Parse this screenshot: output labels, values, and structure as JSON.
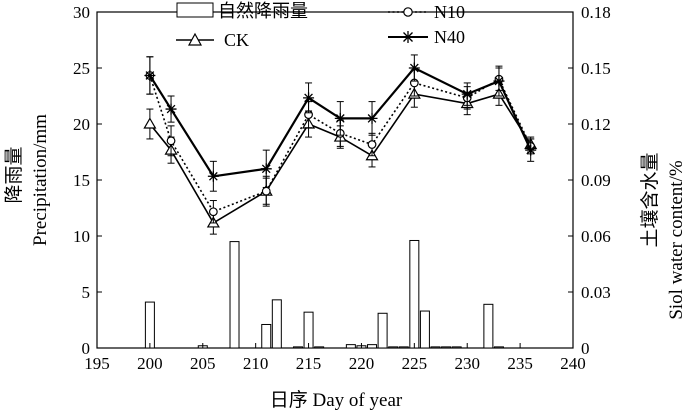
{
  "chart_data": {
    "type": "bar+line",
    "xlabel": "日序 Day of year",
    "ylabel_left_cn": "降雨量",
    "ylabel_left_en": "Precipitation/mm",
    "ylabel_right_cn": "土壤含水量",
    "ylabel_right_en": "Siol water content/%",
    "xlim": [
      195,
      240
    ],
    "ylim_left": [
      0,
      30
    ],
    "ylim_right": [
      0,
      0.18
    ],
    "x_ticks": [
      "195",
      "200",
      "205",
      "210",
      "215",
      "220",
      "225",
      "230",
      "235",
      "240"
    ],
    "y_left_ticks": [
      "0",
      "5",
      "10",
      "15",
      "20",
      "25",
      "30"
    ],
    "y_right_ticks": [
      "0",
      "0.03",
      "0.06",
      "0.09",
      "0.12",
      "0.15",
      "0.18"
    ],
    "legend": {
      "rain": "自然降雨量",
      "ck": "CK",
      "n10": "N10",
      "n40": "N40"
    },
    "precipitation": {
      "axis": "left",
      "x": [
        200,
        205,
        208,
        211,
        212,
        214,
        215,
        216,
        219,
        220,
        221,
        222,
        223,
        224,
        225,
        226,
        227,
        228,
        229,
        232,
        233
      ],
      "values": [
        4.1,
        0.2,
        9.5,
        2.1,
        4.3,
        0.1,
        3.2,
        0.1,
        0.3,
        0.2,
        0.3,
        3.1,
        0.1,
        0.1,
        9.6,
        3.3,
        0.1,
        0.1,
        0.1,
        3.9,
        0.1
      ]
    },
    "series": [
      {
        "name": "CK",
        "axis": "right",
        "marker": "triangle",
        "line": "solid",
        "x": [
          200,
          202,
          206,
          211,
          215,
          218,
          221,
          225,
          230,
          233,
          236
        ],
        "y": [
          0.12,
          0.106,
          0.067,
          0.084,
          0.12,
          0.113,
          0.103,
          0.136,
          0.131,
          0.136,
          0.109
        ],
        "err": [
          0.008,
          0.007,
          0.006,
          0.008,
          0.007,
          0.006,
          0.006,
          0.007,
          0.006,
          0.006,
          0.004
        ]
      },
      {
        "name": "N10",
        "axis": "right",
        "marker": "circle",
        "line": "dotted",
        "x": [
          200,
          202,
          206,
          211,
          215,
          218,
          221,
          225,
          230,
          233,
          236
        ],
        "y": [
          0.146,
          0.111,
          0.073,
          0.084,
          0.125,
          0.115,
          0.109,
          0.142,
          0.134,
          0.144,
          0.108
        ],
        "err": [
          0.01,
          0.008,
          0.006,
          0.007,
          0.007,
          0.007,
          0.006,
          0.007,
          0.006,
          0.006,
          0.004
        ]
      },
      {
        "name": "N40",
        "axis": "right",
        "marker": "star",
        "line": "solid",
        "x": [
          200,
          202,
          206,
          211,
          215,
          218,
          221,
          225,
          230,
          233,
          236
        ],
        "y": [
          0.146,
          0.128,
          0.092,
          0.096,
          0.134,
          0.123,
          0.123,
          0.15,
          0.136,
          0.143,
          0.106
        ],
        "err": [
          0.01,
          0.007,
          0.008,
          0.01,
          0.008,
          0.009,
          0.009,
          0.007,
          0.006,
          0.008,
          0.006
        ]
      }
    ]
  }
}
